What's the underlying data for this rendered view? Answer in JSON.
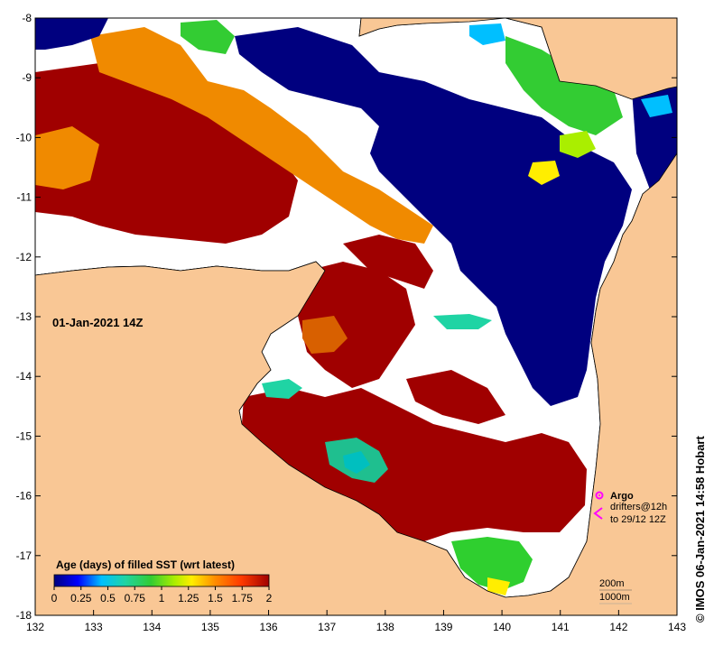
{
  "map": {
    "timestamp": "01-Jan-2021 14Z",
    "credit": "© IMOS 06-Jan-2021 14:58 Hobart",
    "x_axis": {
      "range": [
        132,
        143
      ],
      "ticks": [
        "132",
        "133",
        "134",
        "135",
        "136",
        "137",
        "138",
        "139",
        "140",
        "141",
        "142",
        "143"
      ]
    },
    "y_axis": {
      "range": [
        -18,
        -8
      ],
      "ticks": [
        "-8",
        "-9",
        "-10",
        "-11",
        "-12",
        "-13",
        "-14",
        "-15",
        "-16",
        "-17",
        "-18"
      ]
    },
    "colors": {
      "land": "#f9c795",
      "ocean_nodata": "#ffffff",
      "coast": "#000000"
    },
    "colorbar": {
      "title": "Age (days) of filled SST (wrt latest)",
      "range": [
        0,
        2
      ],
      "tick_labels": [
        "0",
        "0.25",
        "0.5",
        "0.75",
        "1",
        "1.25",
        "1.5",
        "1.75",
        "2"
      ],
      "stops": [
        "#00007f",
        "#0000ff",
        "#00bfff",
        "#1fd4a4",
        "#33cc33",
        "#aaee00",
        "#ffee00",
        "#ff8c00",
        "#ff3b00",
        "#a00000"
      ]
    },
    "legend": {
      "argo_label": "Argo",
      "drifters_label": "drifters@12h",
      "drifters_range": "to 29/12 12Z",
      "argo_icon": "argo-float-icon",
      "drifter_icon": "drifter-arrow-icon",
      "marker_color": "#ff00ff"
    },
    "isobaths": {
      "label_1": "200m",
      "label_2": "1000m"
    }
  }
}
